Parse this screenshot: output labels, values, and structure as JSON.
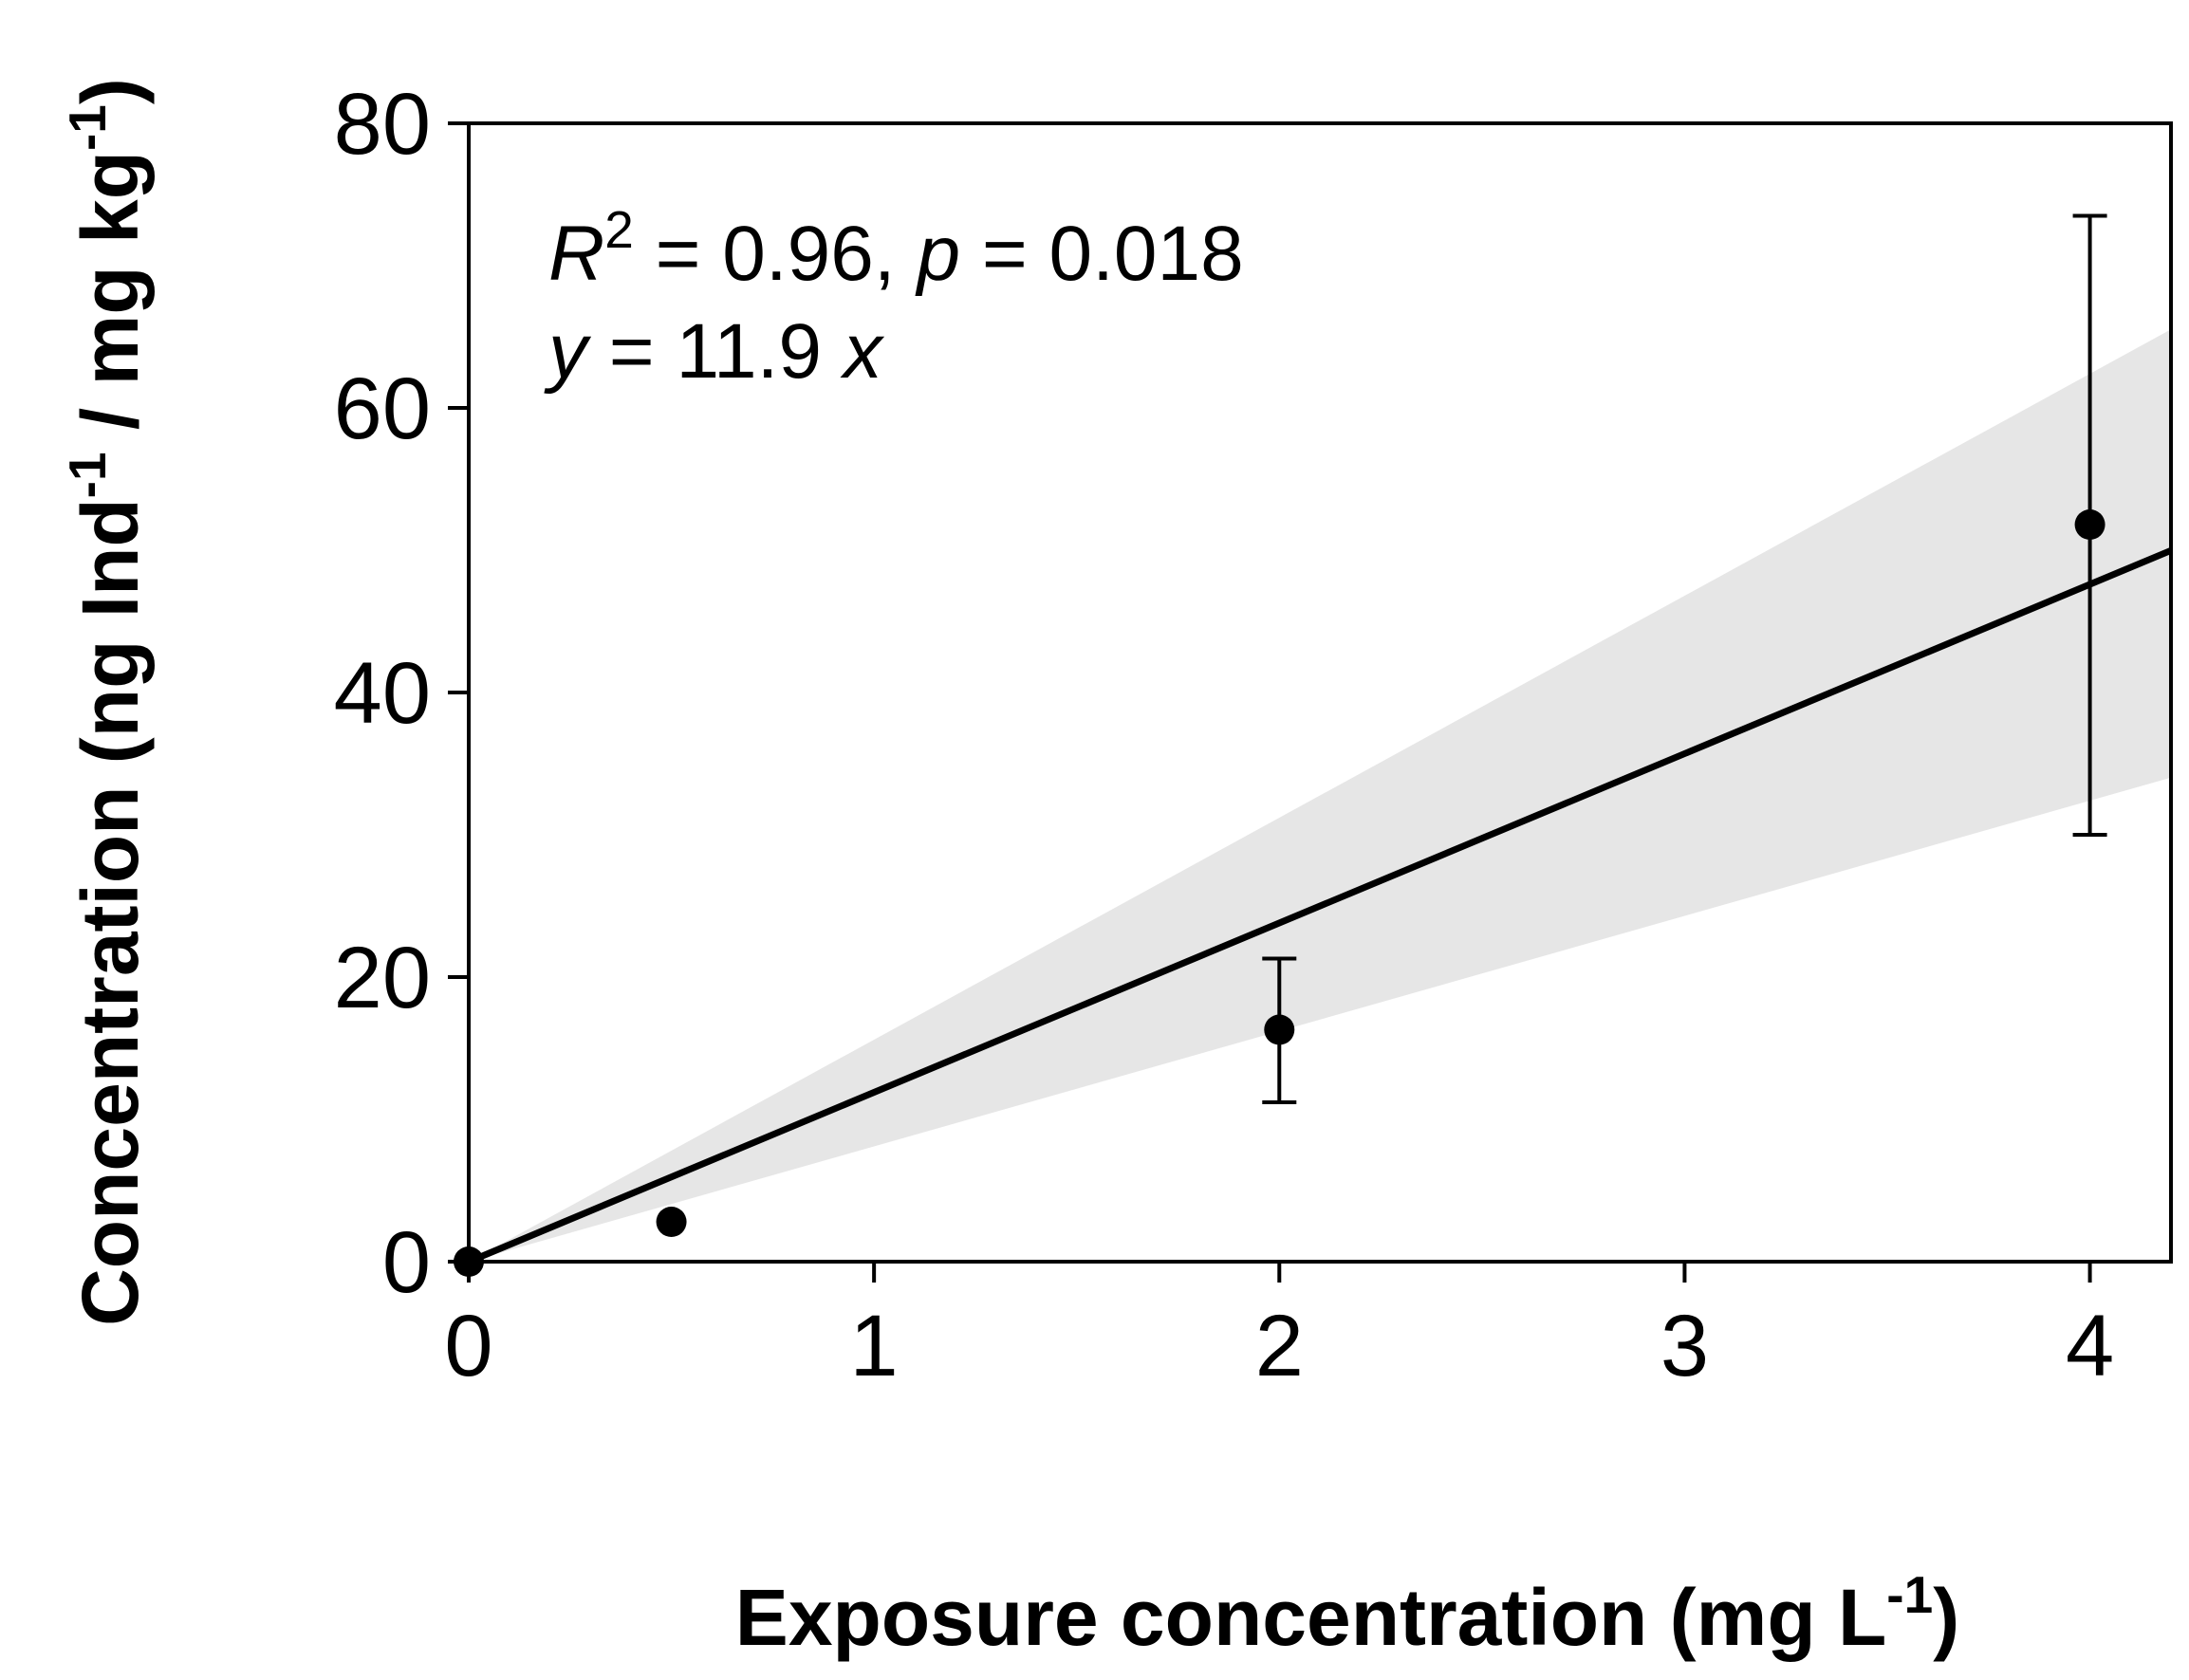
{
  "chart_data": {
    "type": "scatter",
    "title": "",
    "xlabel": {
      "text": "Exposure concentration (mg L",
      "sup": "-1",
      "close": ")"
    },
    "ylabel": {
      "part1": "Concentration (ng Ind",
      "sup1": "-1",
      "part2": " / mg kg",
      "sup2": "-1",
      "close": ")"
    },
    "xlim": [
      0,
      4.2
    ],
    "ylim": [
      0,
      80
    ],
    "xticks": [
      0,
      1,
      2,
      3,
      4
    ],
    "yticks": [
      0,
      20,
      40,
      60,
      80
    ],
    "xtick_labels": [
      "0",
      "1",
      "2",
      "3",
      "4"
    ],
    "ytick_labels": [
      "0",
      "20",
      "40",
      "60",
      "80"
    ],
    "points": [
      {
        "x": 0,
        "y": 0,
        "err_low": null,
        "err_high": null
      },
      {
        "x": 0.5,
        "y": 2.8,
        "err_low": null,
        "err_high": null
      },
      {
        "x": 2,
        "y": 16.3,
        "err_low": 11.2,
        "err_high": 21.3
      },
      {
        "x": 4,
        "y": 51.8,
        "err_low": 30.0,
        "err_high": 73.5
      }
    ],
    "fit": {
      "slope": 11.9,
      "intercept": 0,
      "x_range": [
        0,
        4.2
      ]
    },
    "confidence_band": {
      "upper_slope": 15.6,
      "lower_slope": 8.1
    },
    "grid": false,
    "annotations": {
      "r2_label": "R",
      "r2_sup": "2",
      "r2_eq": " = 0.96, ",
      "p_label": "p",
      "p_eq": "  = 0.018",
      "y_label": "y",
      "eq_text": " = 11.9 ",
      "x_label": "x"
    },
    "colors": {
      "band": "#e6e6e6",
      "line": "#000000",
      "points": "#000000"
    }
  }
}
